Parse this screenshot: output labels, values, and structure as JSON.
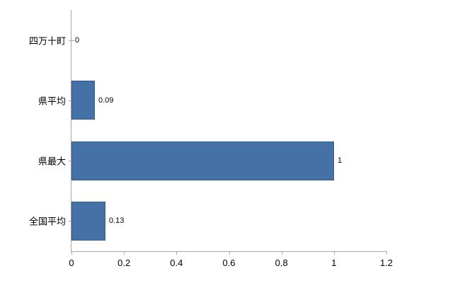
{
  "chart_data": {
    "type": "bar",
    "orientation": "horizontal",
    "title": "",
    "categories": [
      "四万十町",
      "県平均",
      "県最大",
      "全国平均"
    ],
    "values": [
      0,
      0.09,
      1,
      0.13
    ],
    "data_labels": [
      "0",
      "0.09",
      "1",
      "0.13"
    ],
    "xlim": [
      0,
      1.2
    ],
    "x_ticks": [
      0,
      0.2,
      0.4,
      0.6,
      0.8,
      1,
      1.2
    ],
    "x_tick_labels": [
      "0",
      "0.2",
      "0.4",
      "0.6",
      "0.8",
      "1",
      "1.2"
    ],
    "grid": false,
    "legend": false,
    "colors": {
      "bar_fill": "#4472a7",
      "bar_border": "#2e5a8f",
      "axis_line": "#a6a6a6",
      "tick_mark": "#a6a6a6",
      "label_text": "#000000"
    }
  }
}
